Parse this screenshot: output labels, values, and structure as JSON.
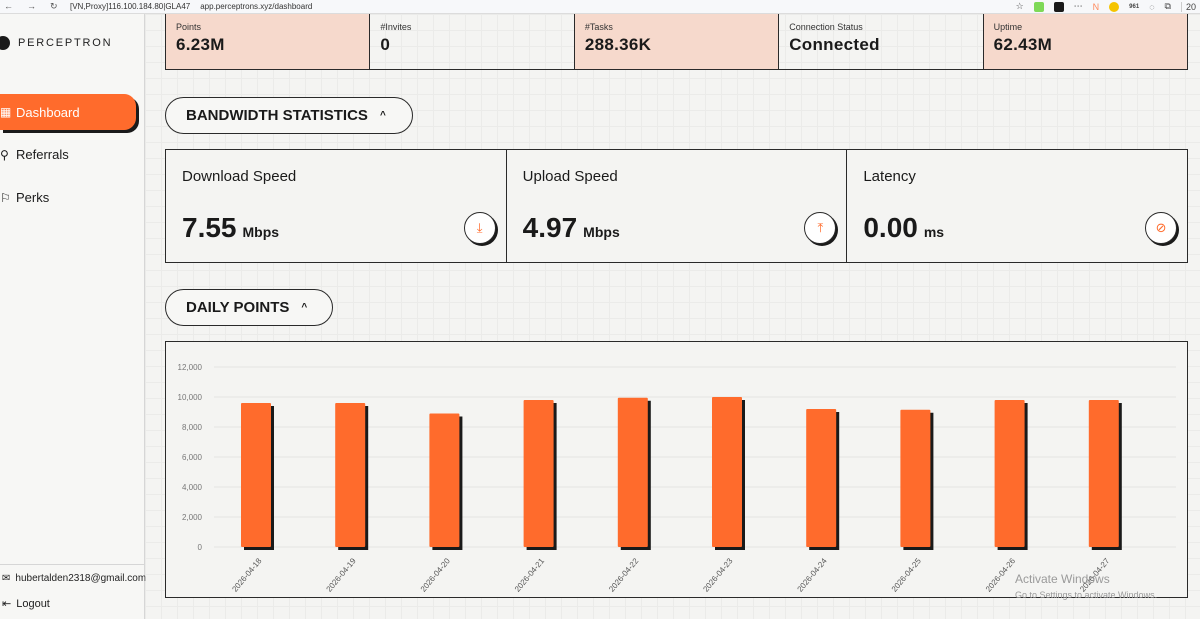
{
  "browser": {
    "tab_label": "[VN,Proxy]116.100.184.80|GLA47",
    "url": "app.perceptrons.xyz/dashboard",
    "badge_count": "961",
    "trailing_text": "20"
  },
  "sidebar": {
    "logo_text": "PERCEPTRON",
    "items": [
      {
        "label": "Dashboard",
        "icon": "grid-icon"
      },
      {
        "label": "Referrals",
        "icon": "link-icon"
      },
      {
        "label": "Perks",
        "icon": "gift-icon"
      }
    ],
    "email": "hubertalden2318@gmail.com",
    "logout": "Logout"
  },
  "stats": [
    {
      "label": "Points",
      "value": "6.23M"
    },
    {
      "label": "#Invites",
      "value": "0"
    },
    {
      "label": "#Tasks",
      "value": "288.36K"
    },
    {
      "label": "Connection Status",
      "value": "Connected"
    },
    {
      "label": "Uptime",
      "value": "62.43M"
    }
  ],
  "bandwidth": {
    "title": "BANDWIDTH STATISTICS",
    "cards": [
      {
        "title": "Download Speed",
        "value": "7.55",
        "unit": "Mbps",
        "icon": "download-icon"
      },
      {
        "title": "Upload Speed",
        "value": "4.97",
        "unit": "Mbps",
        "icon": "upload-icon"
      },
      {
        "title": "Latency",
        "value": "0.00",
        "unit": "ms",
        "icon": "wifi-off-icon"
      }
    ]
  },
  "daily_points": {
    "title": "DAILY POINTS"
  },
  "chart_data": {
    "type": "bar",
    "categories": [
      "2026-04-18",
      "2026-04-19",
      "2026-04-20",
      "2026-04-21",
      "2026-04-22",
      "2026-04-23",
      "2026-04-24",
      "2026-04-25",
      "2026-04-26",
      "2026-04-27"
    ],
    "values": [
      9600,
      9600,
      8900,
      9800,
      9950,
      10000,
      9200,
      9150,
      9800,
      9800
    ],
    "ylim": [
      0,
      12000
    ],
    "yticks": [
      "0",
      "2,000",
      "4,000",
      "6,000",
      "8,000",
      "10,000",
      "12,000"
    ],
    "bar_color": "#ff6b2c",
    "shadow_color": "#1a1a1a",
    "grid": true
  },
  "watermark": {
    "line1": "Activate Windows",
    "line2": "Go to Settings to activate Windows."
  }
}
